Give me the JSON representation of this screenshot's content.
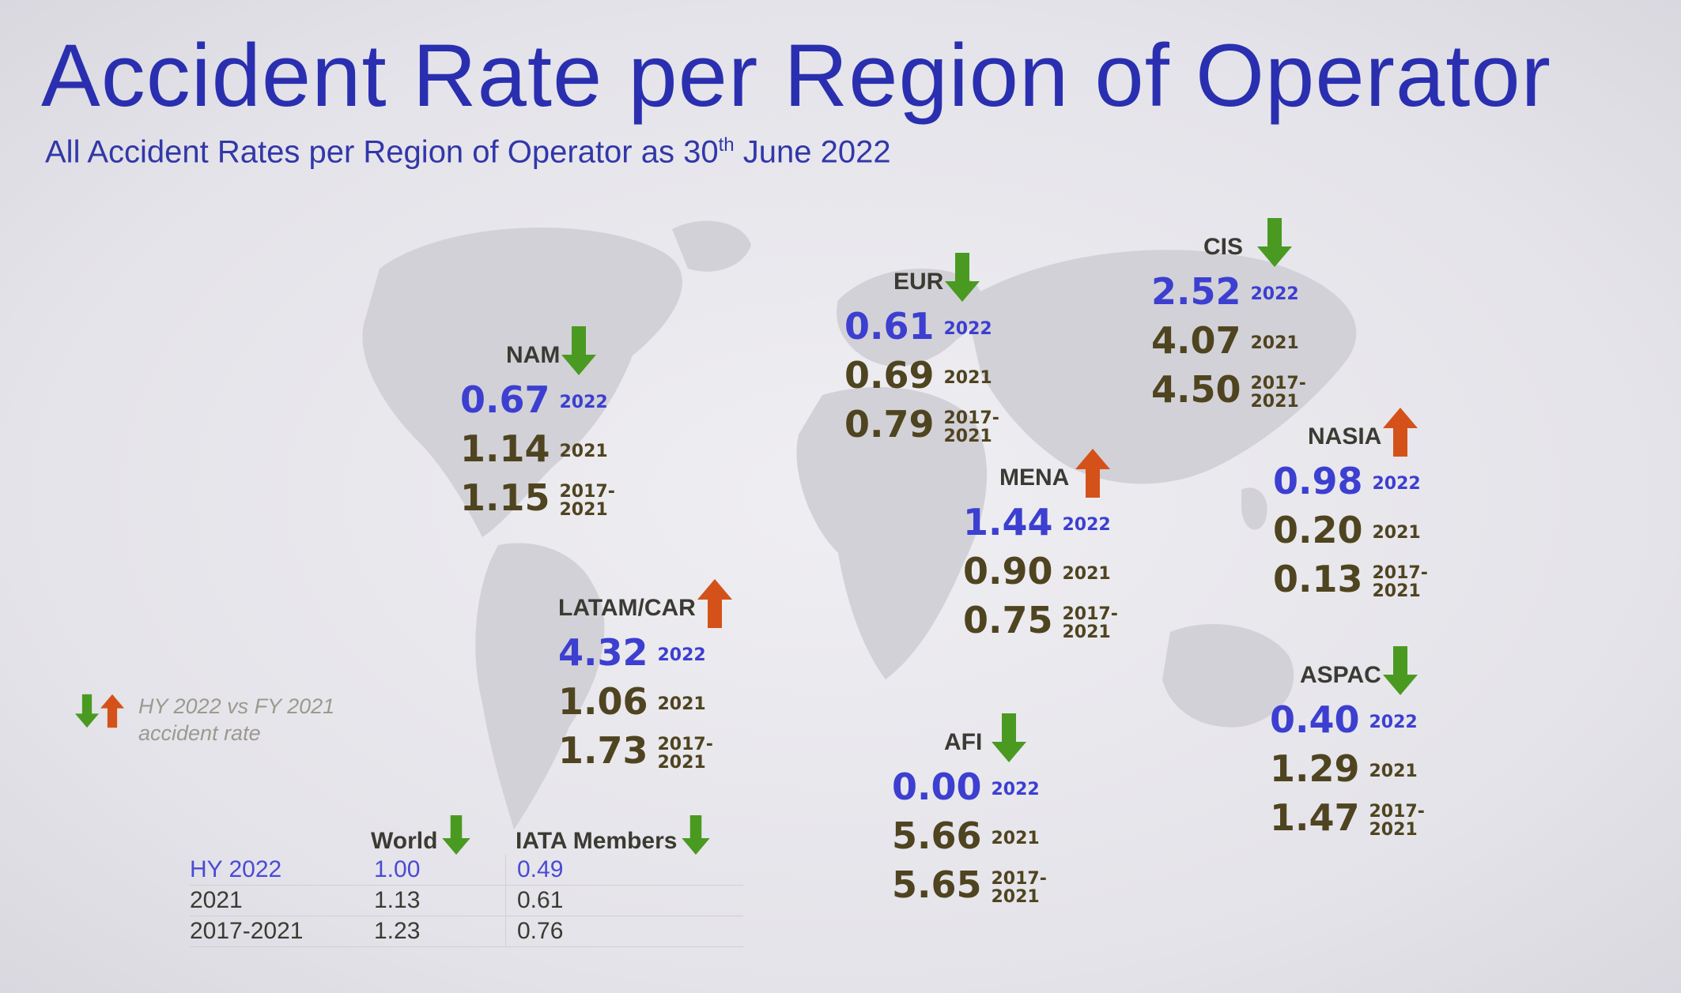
{
  "title": "Accident Rate per Region of Operator",
  "subtitle": {
    "before": "All Accident Rates per Region of Operator as 30",
    "sup": "th",
    "after": " June 2022"
  },
  "colors": {
    "title": "#2a2fb0",
    "current": "#3c3fd0",
    "past": "#4f4420",
    "down": "#4a9a22",
    "up": "#d4521a"
  },
  "regions": [
    {
      "name": "NAM",
      "trend": "down",
      "v2022": "0.67",
      "l2022": "2022",
      "v2021": "1.14",
      "l2021": "2021",
      "vavg": "1.15",
      "lavg1": "2017-",
      "lavg2": "2021"
    },
    {
      "name": "EUR",
      "trend": "down",
      "v2022": "0.61",
      "l2022": "2022",
      "v2021": "0.69",
      "l2021": "2021",
      "vavg": "0.79",
      "lavg1": "2017-",
      "lavg2": "2021"
    },
    {
      "name": "CIS",
      "trend": "down",
      "v2022": "2.52",
      "l2022": "2022",
      "v2021": "4.07",
      "l2021": "2021",
      "vavg": "4.50",
      "lavg1": "2017-",
      "lavg2": "2021"
    },
    {
      "name": "NASIA",
      "trend": "up",
      "v2022": "0.98",
      "l2022": "2022",
      "v2021": "0.20",
      "l2021": "2021",
      "vavg": "0.13",
      "lavg1": "2017-",
      "lavg2": "2021"
    },
    {
      "name": "MENA",
      "trend": "up",
      "v2022": "1.44",
      "l2022": "2022",
      "v2021": "0.90",
      "l2021": "2021",
      "vavg": "0.75",
      "lavg1": "2017-",
      "lavg2": "2021"
    },
    {
      "name": "LATAM/CAR",
      "trend": "up",
      "v2022": "4.32",
      "l2022": "2022",
      "v2021": "1.06",
      "l2021": "2021",
      "vavg": "1.73",
      "lavg1": "2017-",
      "lavg2": "2021"
    },
    {
      "name": "AFI",
      "trend": "down",
      "v2022": "0.00",
      "l2022": "2022",
      "v2021": "5.66",
      "l2021": "2021",
      "vavg": "5.65",
      "lavg1": "2017-",
      "lavg2": "2021"
    },
    {
      "name": "ASPAC",
      "trend": "down",
      "v2022": "0.40",
      "l2022": "2022",
      "v2021": "1.29",
      "l2021": "2021",
      "vavg": "1.47",
      "lavg1": "2017-",
      "lavg2": "2021"
    }
  ],
  "legend": {
    "line1": "HY 2022 vs FY 2021",
    "line2": "accident rate"
  },
  "summary": {
    "col_world": "World",
    "world_trend": "down",
    "col_iata": "IATA Members",
    "iata_trend": "down",
    "rows": [
      {
        "label": "HY 2022",
        "world": "1.00",
        "iata": "0.49"
      },
      {
        "label": "2021",
        "world": "1.13",
        "iata": "0.61"
      },
      {
        "label": "2017-2021",
        "world": "1.23",
        "iata": "0.76"
      }
    ]
  }
}
